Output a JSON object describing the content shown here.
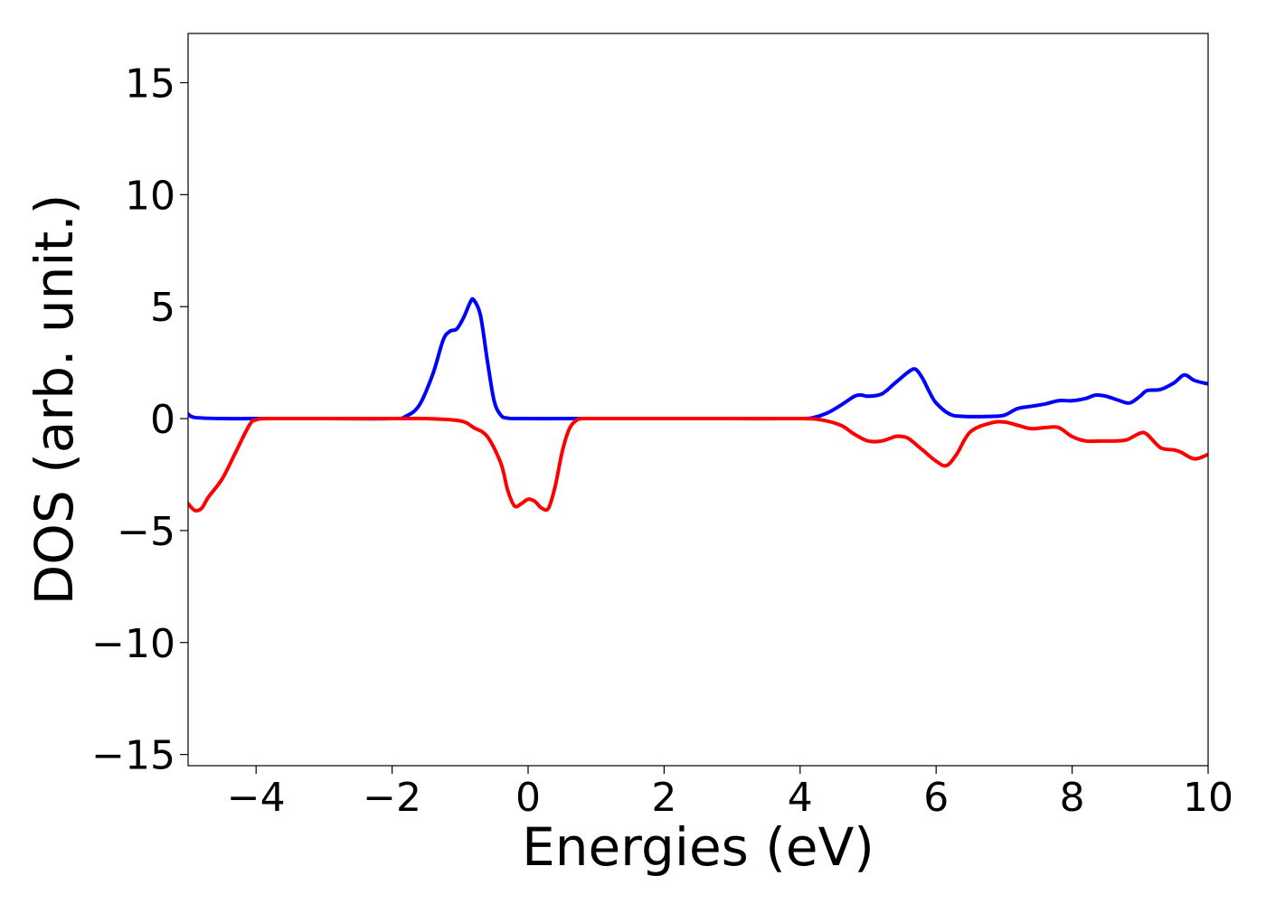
{
  "chart_data": {
    "type": "line",
    "title": "",
    "xlabel": "Energies (eV)",
    "ylabel": "DOS (arb. unit.)",
    "xlim": [
      -5,
      10
    ],
    "ylim": [
      -15.5,
      17.2
    ],
    "xticks": [
      -4,
      -2,
      0,
      2,
      4,
      6,
      8,
      10
    ],
    "xtick_labels": [
      "−4",
      "−2",
      "0",
      "2",
      "4",
      "6",
      "8",
      "10"
    ],
    "yticks": [
      -15,
      -10,
      -5,
      0,
      5,
      10,
      15
    ],
    "ytick_labels": [
      "−15",
      "−10",
      "−5",
      "0",
      "5",
      "10",
      "15"
    ],
    "grid": false,
    "legend": "none",
    "series": [
      {
        "color": "#0000ff",
        "x": [
          -5.0,
          -4.9,
          -4.5,
          -4.0,
          -3.0,
          -2.0,
          -1.8,
          -1.6,
          -1.4,
          -1.25,
          -1.15,
          -1.05,
          -0.95,
          -0.85,
          -0.8,
          -0.7,
          -0.6,
          -0.5,
          -0.4,
          -0.3,
          -0.1,
          0.5,
          1.0,
          2.0,
          3.0,
          4.0,
          4.2,
          4.4,
          4.6,
          4.8,
          4.9,
          5.0,
          5.2,
          5.4,
          5.6,
          5.7,
          5.8,
          5.9,
          6.0,
          6.2,
          6.4,
          6.8,
          7.0,
          7.2,
          7.4,
          7.6,
          7.8,
          8.0,
          8.2,
          8.35,
          8.5,
          8.7,
          8.85,
          9.0,
          9.1,
          9.3,
          9.5,
          9.65,
          9.8,
          10.0
        ],
        "y": [
          0.2,
          0.05,
          0.0,
          0.0,
          0.0,
          0.0,
          0.1,
          0.6,
          2.0,
          3.5,
          3.9,
          4.0,
          4.5,
          5.2,
          5.3,
          4.6,
          2.6,
          0.8,
          0.15,
          0.02,
          0.0,
          0.0,
          0.0,
          0.0,
          0.0,
          0.0,
          0.05,
          0.25,
          0.6,
          1.0,
          1.05,
          1.0,
          1.1,
          1.6,
          2.1,
          2.2,
          1.8,
          1.2,
          0.7,
          0.2,
          0.1,
          0.1,
          0.15,
          0.45,
          0.55,
          0.65,
          0.8,
          0.8,
          0.9,
          1.05,
          1.0,
          0.8,
          0.7,
          1.0,
          1.25,
          1.3,
          1.6,
          1.95,
          1.7,
          1.55
        ]
      },
      {
        "color": "#ff0000",
        "x": [
          -5.0,
          -4.9,
          -4.8,
          -4.7,
          -4.5,
          -4.3,
          -4.1,
          -4.0,
          -3.8,
          -3.0,
          -2.0,
          -1.5,
          -1.0,
          -0.8,
          -0.6,
          -0.4,
          -0.3,
          -0.2,
          -0.1,
          0.0,
          0.1,
          0.2,
          0.3,
          0.4,
          0.5,
          0.6,
          0.7,
          0.8,
          1.0,
          2.0,
          3.0,
          4.0,
          4.3,
          4.6,
          4.8,
          5.0,
          5.2,
          5.4,
          5.5,
          5.6,
          5.8,
          6.0,
          6.15,
          6.3,
          6.5,
          6.8,
          7.0,
          7.2,
          7.4,
          7.6,
          7.8,
          8.0,
          8.2,
          8.4,
          8.6,
          8.8,
          9.0,
          9.1,
          9.3,
          9.5,
          9.6,
          9.8,
          10.0
        ],
        "y": [
          -3.8,
          -4.1,
          -4.0,
          -3.5,
          -2.7,
          -1.5,
          -0.3,
          -0.05,
          0.0,
          0.0,
          0.0,
          0.0,
          -0.1,
          -0.4,
          -0.8,
          -2.0,
          -3.2,
          -3.9,
          -3.8,
          -3.6,
          -3.7,
          -4.0,
          -4.0,
          -3.0,
          -1.5,
          -0.5,
          -0.1,
          0.0,
          0.0,
          0.0,
          0.0,
          0.0,
          -0.05,
          -0.3,
          -0.7,
          -1.0,
          -1.0,
          -0.8,
          -0.8,
          -0.9,
          -1.4,
          -1.9,
          -2.1,
          -1.6,
          -0.6,
          -0.2,
          -0.15,
          -0.3,
          -0.45,
          -0.4,
          -0.4,
          -0.8,
          -1.0,
          -1.0,
          -1.0,
          -0.95,
          -0.65,
          -0.7,
          -1.3,
          -1.4,
          -1.5,
          -1.8,
          -1.6
        ]
      }
    ]
  }
}
